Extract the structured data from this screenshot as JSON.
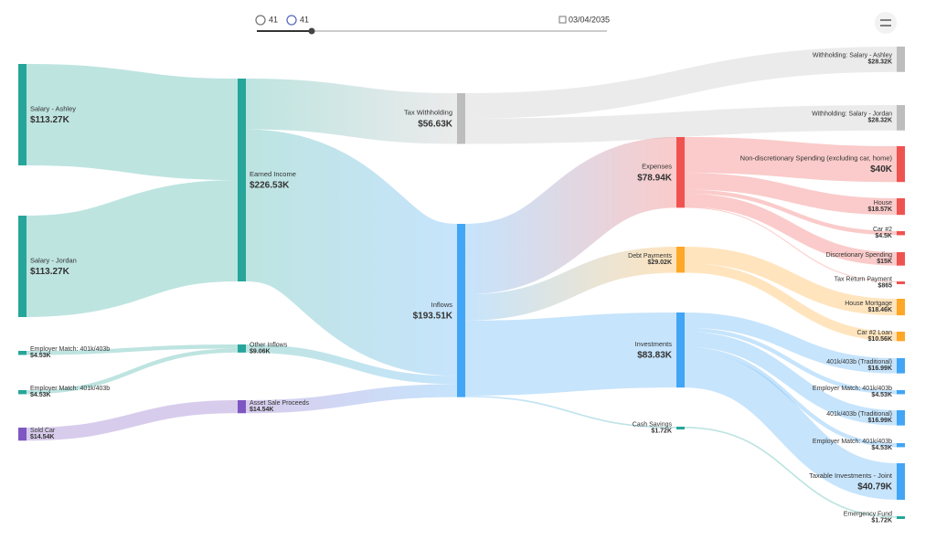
{
  "controls": {
    "left_counter": "41",
    "right_counter": "41",
    "date": "03/04/2035"
  },
  "chart_data": {
    "type": "sankey",
    "nodes": [
      {
        "name": "Salary - Ashley",
        "value": 113270,
        "value_label": "$113.27K",
        "color": "#26a69a"
      },
      {
        "name": "Salary - Jordan",
        "value": 113270,
        "value_label": "$113.27K",
        "color": "#26a69a"
      },
      {
        "name": "Employer Match: 401k/403b",
        "value": 4530,
        "value_label": "$4.53K",
        "color": "#26a69a"
      },
      {
        "name": "Employer Match: 401k/403b",
        "value": 4530,
        "value_label": "$4.53K",
        "color": "#26a69a"
      },
      {
        "name": "Sold Car",
        "value": 14540,
        "value_label": "$14.54K",
        "color": "#7e57c2"
      },
      {
        "name": "Earned Income",
        "value": 226530,
        "value_label": "$226.53K",
        "color": "#26a69a"
      },
      {
        "name": "Other Inflows",
        "value": 9060,
        "value_label": "$9.06K",
        "color": "#26a69a"
      },
      {
        "name": "Asset Sale Proceeds",
        "value": 14540,
        "value_label": "$14.54K",
        "color": "#7e57c2"
      },
      {
        "name": "Tax Withholding",
        "value": 56630,
        "value_label": "$56.63K",
        "color": "#bdbdbd"
      },
      {
        "name": "Inflows",
        "value": 193510,
        "value_label": "$193.51K",
        "color": "#42a5f5"
      },
      {
        "name": "Expenses",
        "value": 78940,
        "value_label": "$78.94K",
        "color": "#ef5350"
      },
      {
        "name": "Debt Payments",
        "value": 29020,
        "value_label": "$29.02K",
        "color": "#ffa726"
      },
      {
        "name": "Investments",
        "value": 83830,
        "value_label": "$83.83K",
        "color": "#42a5f5"
      },
      {
        "name": "Cash Savings",
        "value": 1720,
        "value_label": "$1.72K",
        "color": "#26a69a"
      },
      {
        "name": "Withholding: Salary - Ashley",
        "value": 28320,
        "value_label": "$28.32K",
        "color": "#bdbdbd"
      },
      {
        "name": "Withholding: Salary - Jordan",
        "value": 28320,
        "value_label": "$28.32K",
        "color": "#bdbdbd"
      },
      {
        "name": "Non-discretionary Spending (excluding car, home)",
        "value": 40000,
        "value_label": "$40K",
        "color": "#ef5350"
      },
      {
        "name": "House",
        "value": 18570,
        "value_label": "$18.57K",
        "color": "#ef5350"
      },
      {
        "name": "Car #2",
        "value": 4500,
        "value_label": "$4.5K",
        "color": "#ef5350"
      },
      {
        "name": "Discretionary Spending",
        "value": 15000,
        "value_label": "$15K",
        "color": "#ef5350"
      },
      {
        "name": "Tax Return Payment",
        "value": 865,
        "value_label": "$865",
        "color": "#ef5350"
      },
      {
        "name": "House Mortgage",
        "value": 18460,
        "value_label": "$18.46K",
        "color": "#ffa726"
      },
      {
        "name": "Car #2 Loan",
        "value": 10560,
        "value_label": "$10.56K",
        "color": "#ffa726"
      },
      {
        "name": "401k/403b (Traditional)",
        "value": 16990,
        "value_label": "$16.99K",
        "color": "#42a5f5"
      },
      {
        "name": "Employer Match: 401k/403b",
        "value": 4530,
        "value_label": "$4.53K",
        "color": "#42a5f5"
      },
      {
        "name": "401k/403b (Traditional)",
        "value": 16990,
        "value_label": "$16.99K",
        "color": "#42a5f5"
      },
      {
        "name": "Employer Match: 401k/403b",
        "value": 4530,
        "value_label": "$4.53K",
        "color": "#42a5f5"
      },
      {
        "name": "Taxable Investments - Joint",
        "value": 40790,
        "value_label": "$40.79K",
        "color": "#42a5f5"
      },
      {
        "name": "Emergency Fund",
        "value": 1720,
        "value_label": "$1.72K",
        "color": "#26a69a"
      }
    ],
    "links": [
      {
        "source": 0,
        "target": 5,
        "value": 113270
      },
      {
        "source": 1,
        "target": 5,
        "value": 113270
      },
      {
        "source": 2,
        "target": 6,
        "value": 4530
      },
      {
        "source": 3,
        "target": 6,
        "value": 4530
      },
      {
        "source": 4,
        "target": 7,
        "value": 14540
      },
      {
        "source": 5,
        "target": 8,
        "value": 56630
      },
      {
        "source": 5,
        "target": 9,
        "value": 169900
      },
      {
        "source": 6,
        "target": 9,
        "value": 9060
      },
      {
        "source": 7,
        "target": 9,
        "value": 14540
      },
      {
        "source": 8,
        "target": 14,
        "value": 28320
      },
      {
        "source": 8,
        "target": 15,
        "value": 28320
      },
      {
        "source": 9,
        "target": 10,
        "value": 78940
      },
      {
        "source": 9,
        "target": 11,
        "value": 29020
      },
      {
        "source": 9,
        "target": 12,
        "value": 83830
      },
      {
        "source": 9,
        "target": 13,
        "value": 1720
      },
      {
        "source": 10,
        "target": 16,
        "value": 40000
      },
      {
        "source": 10,
        "target": 17,
        "value": 18570
      },
      {
        "source": 10,
        "target": 18,
        "value": 4500
      },
      {
        "source": 10,
        "target": 19,
        "value": 15000
      },
      {
        "source": 10,
        "target": 20,
        "value": 865
      },
      {
        "source": 11,
        "target": 21,
        "value": 18460
      },
      {
        "source": 11,
        "target": 22,
        "value": 10560
      },
      {
        "source": 12,
        "target": 23,
        "value": 16990
      },
      {
        "source": 12,
        "target": 24,
        "value": 4530
      },
      {
        "source": 12,
        "target": 25,
        "value": 16990
      },
      {
        "source": 12,
        "target": 26,
        "value": 4530
      },
      {
        "source": 12,
        "target": 27,
        "value": 40790
      },
      {
        "source": 13,
        "target": 28,
        "value": 1720
      }
    ]
  }
}
